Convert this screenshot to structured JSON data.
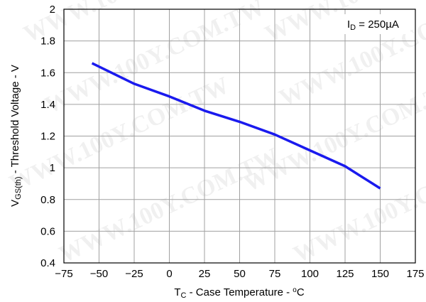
{
  "chart_data": {
    "type": "line",
    "x": [
      -55,
      -25,
      0,
      25,
      50,
      75,
      100,
      125,
      150
    ],
    "series": [
      {
        "values": [
          1.66,
          1.53,
          1.45,
          1.36,
          1.29,
          1.21,
          1.11,
          1.01,
          0.87
        ],
        "color": "#1a1aee"
      }
    ],
    "xlim": [
      -75,
      175
    ],
    "ylim": [
      0.4,
      2
    ],
    "x_ticks": [
      -75,
      -50,
      -25,
      0,
      25,
      50,
      75,
      100,
      125,
      150,
      175
    ],
    "y_ticks": [
      0.4,
      0.6,
      0.8,
      1,
      1.2,
      1.4,
      1.6,
      1.8,
      2
    ],
    "x_tick_labels": [
      "−75",
      "−50",
      "−25",
      "0",
      "25",
      "50",
      "75",
      "100",
      "125",
      "150",
      "175"
    ],
    "y_tick_labels": [
      "0.4",
      "0.6",
      "0.8",
      "1",
      "1.2",
      "1.4",
      "1.6",
      "1.8",
      "2"
    ],
    "xlabel": {
      "main": "T",
      "sub": "C",
      "rest": " - Case Temperature - ",
      "sup": "o",
      "unit": "C"
    },
    "ylabel": {
      "main": "V",
      "sub": "GS(th)",
      "rest": " - Threshold Voltage - V"
    },
    "annotation": {
      "main": "I",
      "sub": "D",
      "rest": " = 250µA"
    },
    "grid": true,
    "watermark": "WWW.100Y.COM.TW"
  }
}
